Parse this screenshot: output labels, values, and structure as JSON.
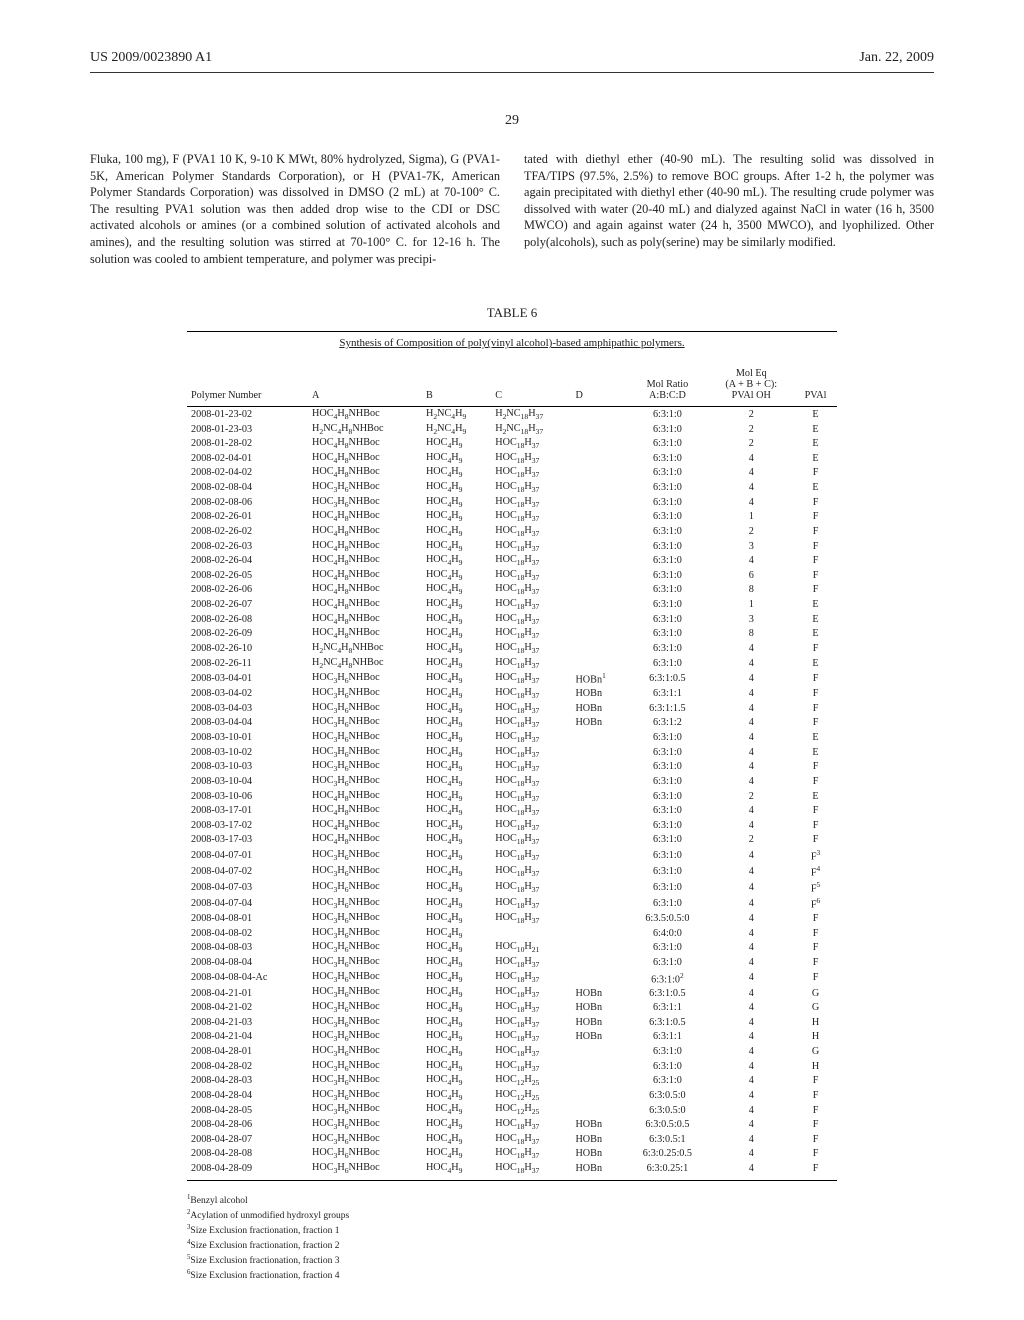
{
  "header": {
    "pub_no": "US 2009/0023890 A1",
    "date": "Jan. 22, 2009"
  },
  "page_number": "29",
  "left_paragraph": "Fluka, 100 mg), F (PVA1 10 K, 9-10 K MWt, 80% hydrolyzed, Sigma), G (PVA1-5K, American Polymer Standards Corporation), or H (PVA1-7K, American Polymer Standards Corporation) was dissolved in DMSO (2 mL) at 70-100° C. The resulting PVA1 solution was then added drop wise to the CDI or DSC activated alcohols or amines (or a combined solution of activated alcohols and amines), and the resulting solution was stirred at 70-100° C. for 12-16 h. The solution was cooled to ambient temperature, and polymer was precipi-",
  "right_paragraph": "tated with diethyl ether (40-90 mL). The resulting solid was dissolved in TFA/TIPS (97.5%, 2.5%) to remove BOC groups. After 1-2 h, the polymer was again precipitated with diethyl ether (40-90 mL). The resulting crude polymer was dissolved with water (20-40 mL) and dialyzed against NaCl in water (16 h, 3500 MWCO) and again against water (24 h, 3500 MWCO), and lyophilized. Other poly(alcohols), such as poly(serine) may be similarly modified.",
  "table": {
    "label": "TABLE 6",
    "caption": "Synthesis of Composition of poly(vinyl alcohol)-based amphipathic polymers.",
    "columns": [
      "Polymer Number",
      "A",
      "B",
      "C",
      "D",
      "Mol Ratio A:B:C:D",
      "Mol Eq (A + B + C): PVAl OH",
      "PVAl"
    ],
    "rows": [
      [
        "2008-01-23-02",
        "HOC<sub>4</sub>H<sub>8</sub>NHBoc",
        "H<sub>2</sub>NC<sub>4</sub>H<sub>9</sub>",
        "H<sub>2</sub>NC<sub>18</sub>H<sub>37</sub>",
        "",
        "6:3:1:0",
        "2",
        "E"
      ],
      [
        "2008-01-23-03",
        "H<sub>2</sub>NC<sub>4</sub>H<sub>8</sub>NHBoc",
        "H<sub>2</sub>NC<sub>4</sub>H<sub>9</sub>",
        "H<sub>2</sub>NC<sub>18</sub>H<sub>37</sub>",
        "",
        "6:3:1:0",
        "2",
        "E"
      ],
      [
        "2008-01-28-02",
        "HOC<sub>4</sub>H<sub>8</sub>NHBoc",
        "HOC<sub>4</sub>H<sub>9</sub>",
        "HOC<sub>18</sub>H<sub>37</sub>",
        "",
        "6:3:1:0",
        "2",
        "E"
      ],
      [
        "2008-02-04-01",
        "HOC<sub>4</sub>H<sub>8</sub>NHBoc",
        "HOC<sub>4</sub>H<sub>9</sub>",
        "HOC<sub>18</sub>H<sub>37</sub>",
        "",
        "6:3:1:0",
        "4",
        "E"
      ],
      [
        "2008-02-04-02",
        "HOC<sub>4</sub>H<sub>8</sub>NHBoc",
        "HOC<sub>4</sub>H<sub>9</sub>",
        "HOC<sub>18</sub>H<sub>37</sub>",
        "",
        "6:3:1:0",
        "4",
        "F"
      ],
      [
        "2008-02-08-04",
        "HOC<sub>3</sub>H<sub>6</sub>NHBoc",
        "HOC<sub>4</sub>H<sub>9</sub>",
        "HOC<sub>18</sub>H<sub>37</sub>",
        "",
        "6:3:1:0",
        "4",
        "E"
      ],
      [
        "2008-02-08-06",
        "HOC<sub>3</sub>H<sub>6</sub>NHBoc",
        "HOC<sub>4</sub>H<sub>9</sub>",
        "HOC<sub>18</sub>H<sub>37</sub>",
        "",
        "6:3:1:0",
        "4",
        "F"
      ],
      [
        "2008-02-26-01",
        "HOC<sub>4</sub>H<sub>8</sub>NHBoc",
        "HOC<sub>4</sub>H<sub>9</sub>",
        "HOC<sub>18</sub>H<sub>37</sub>",
        "",
        "6:3:1:0",
        "1",
        "F"
      ],
      [
        "2008-02-26-02",
        "HOC<sub>4</sub>H<sub>8</sub>NHBoc",
        "HOC<sub>4</sub>H<sub>9</sub>",
        "HOC<sub>18</sub>H<sub>37</sub>",
        "",
        "6:3:1:0",
        "2",
        "F"
      ],
      [
        "2008-02-26-03",
        "HOC<sub>4</sub>H<sub>8</sub>NHBoc",
        "HOC<sub>4</sub>H<sub>9</sub>",
        "HOC<sub>18</sub>H<sub>37</sub>",
        "",
        "6:3:1:0",
        "3",
        "F"
      ],
      [
        "2008-02-26-04",
        "HOC<sub>4</sub>H<sub>8</sub>NHBoc",
        "HOC<sub>4</sub>H<sub>9</sub>",
        "HOC<sub>18</sub>H<sub>37</sub>",
        "",
        "6:3:1:0",
        "4",
        "F"
      ],
      [
        "2008-02-26-05",
        "HOC<sub>4</sub>H<sub>8</sub>NHBoc",
        "HOC<sub>4</sub>H<sub>9</sub>",
        "HOC<sub>18</sub>H<sub>37</sub>",
        "",
        "6:3:1:0",
        "6",
        "F"
      ],
      [
        "2008-02-26-06",
        "HOC<sub>4</sub>H<sub>8</sub>NHBoc",
        "HOC<sub>4</sub>H<sub>9</sub>",
        "HOC<sub>18</sub>H<sub>37</sub>",
        "",
        "6:3:1:0",
        "8",
        "F"
      ],
      [
        "2008-02-26-07",
        "HOC<sub>4</sub>H<sub>8</sub>NHBoc",
        "HOC<sub>4</sub>H<sub>9</sub>",
        "HOC<sub>18</sub>H<sub>37</sub>",
        "",
        "6:3:1:0",
        "1",
        "E"
      ],
      [
        "2008-02-26-08",
        "HOC<sub>4</sub>H<sub>8</sub>NHBoc",
        "HOC<sub>4</sub>H<sub>9</sub>",
        "HOC<sub>18</sub>H<sub>37</sub>",
        "",
        "6:3:1:0",
        "3",
        "E"
      ],
      [
        "2008-02-26-09",
        "HOC<sub>4</sub>H<sub>8</sub>NHBoc",
        "HOC<sub>4</sub>H<sub>9</sub>",
        "HOC<sub>18</sub>H<sub>37</sub>",
        "",
        "6:3:1:0",
        "8",
        "E"
      ],
      [
        "2008-02-26-10",
        "H<sub>2</sub>NC<sub>4</sub>H<sub>8</sub>NHBoc",
        "HOC<sub>4</sub>H<sub>9</sub>",
        "HOC<sub>18</sub>H<sub>37</sub>",
        "",
        "6:3:1:0",
        "4",
        "F"
      ],
      [
        "2008-02-26-11",
        "H<sub>2</sub>NC<sub>4</sub>H<sub>8</sub>NHBoc",
        "HOC<sub>4</sub>H<sub>9</sub>",
        "HOC<sub>18</sub>H<sub>37</sub>",
        "",
        "6:3:1:0",
        "4",
        "E"
      ],
      [
        "2008-03-04-01",
        "HOC<sub>3</sub>H<sub>6</sub>NHBoc",
        "HOC<sub>4</sub>H<sub>9</sub>",
        "HOC<sub>18</sub>H<sub>37</sub>",
        "HOBn<sup>1</sup>",
        "6:3:1:0.5",
        "4",
        "F"
      ],
      [
        "2008-03-04-02",
        "HOC<sub>3</sub>H<sub>6</sub>NHBoc",
        "HOC<sub>4</sub>H<sub>9</sub>",
        "HOC<sub>18</sub>H<sub>37</sub>",
        "HOBn",
        "6:3:1:1",
        "4",
        "F"
      ],
      [
        "2008-03-04-03",
        "HOC<sub>3</sub>H<sub>6</sub>NHBoc",
        "HOC<sub>4</sub>H<sub>9</sub>",
        "HOC<sub>18</sub>H<sub>37</sub>",
        "HOBn",
        "6:3:1:1.5",
        "4",
        "F"
      ],
      [
        "2008-03-04-04",
        "HOC<sub>3</sub>H<sub>6</sub>NHBoc",
        "HOC<sub>4</sub>H<sub>9</sub>",
        "HOC<sub>18</sub>H<sub>37</sub>",
        "HOBn",
        "6:3:1:2",
        "4",
        "F"
      ],
      [
        "2008-03-10-01",
        "HOC<sub>3</sub>H<sub>6</sub>NHBoc",
        "HOC<sub>4</sub>H<sub>9</sub>",
        "HOC<sub>18</sub>H<sub>37</sub>",
        "",
        "6:3:1:0",
        "4",
        "E"
      ],
      [
        "2008-03-10-02",
        "HOC<sub>3</sub>H<sub>6</sub>NHBoc",
        "HOC<sub>4</sub>H<sub>9</sub>",
        "HOC<sub>18</sub>H<sub>37</sub>",
        "",
        "6:3:1:0",
        "4",
        "E"
      ],
      [
        "2008-03-10-03",
        "HOC<sub>3</sub>H<sub>6</sub>NHBoc",
        "HOC<sub>4</sub>H<sub>9</sub>",
        "HOC<sub>18</sub>H<sub>37</sub>",
        "",
        "6:3:1:0",
        "4",
        "F"
      ],
      [
        "2008-03-10-04",
        "HOC<sub>3</sub>H<sub>6</sub>NHBoc",
        "HOC<sub>4</sub>H<sub>9</sub>",
        "HOC<sub>18</sub>H<sub>37</sub>",
        "",
        "6:3:1:0",
        "4",
        "F"
      ],
      [
        "2008-03-10-06",
        "HOC<sub>4</sub>H<sub>8</sub>NHBoc",
        "HOC<sub>4</sub>H<sub>9</sub>",
        "HOC<sub>18</sub>H<sub>37</sub>",
        "",
        "6:3:1:0",
        "2",
        "E"
      ],
      [
        "2008-03-17-01",
        "HOC<sub>4</sub>H<sub>8</sub>NHBoc",
        "HOC<sub>4</sub>H<sub>9</sub>",
        "HOC<sub>18</sub>H<sub>37</sub>",
        "",
        "6:3:1:0",
        "4",
        "F"
      ],
      [
        "2008-03-17-02",
        "HOC<sub>4</sub>H<sub>8</sub>NHBoc",
        "HOC<sub>4</sub>H<sub>9</sub>",
        "HOC<sub>18</sub>H<sub>37</sub>",
        "",
        "6:3:1:0",
        "4",
        "F"
      ],
      [
        "2008-03-17-03",
        "HOC<sub>4</sub>H<sub>8</sub>NHBoc",
        "HOC<sub>4</sub>H<sub>9</sub>",
        "HOC<sub>18</sub>H<sub>37</sub>",
        "",
        "6:3:1:0",
        "2",
        "F"
      ],
      [
        "2008-04-07-01",
        "HOC<sub>3</sub>H<sub>6</sub>NHBoc",
        "HOC<sub>4</sub>H<sub>9</sub>",
        "HOC<sub>18</sub>H<sub>37</sub>",
        "",
        "6:3:1:0",
        "4",
        "F<sup>3</sup>"
      ],
      [
        "2008-04-07-02",
        "HOC<sub>3</sub>H<sub>6</sub>NHBoc",
        "HOC<sub>4</sub>H<sub>9</sub>",
        "HOC<sub>18</sub>H<sub>37</sub>",
        "",
        "6:3:1:0",
        "4",
        "F<sup>4</sup>"
      ],
      [
        "2008-04-07-03",
        "HOC<sub>3</sub>H<sub>6</sub>NHBoc",
        "HOC<sub>4</sub>H<sub>9</sub>",
        "HOC<sub>18</sub>H<sub>37</sub>",
        "",
        "6:3:1:0",
        "4",
        "F<sup>5</sup>"
      ],
      [
        "2008-04-07-04",
        "HOC<sub>3</sub>H<sub>6</sub>NHBoc",
        "HOC<sub>4</sub>H<sub>9</sub>",
        "HOC<sub>18</sub>H<sub>37</sub>",
        "",
        "6:3:1:0",
        "4",
        "F<sup>6</sup>"
      ],
      [
        "2008-04-08-01",
        "HOC<sub>3</sub>H<sub>6</sub>NHBoc",
        "HOC<sub>4</sub>H<sub>9</sub>",
        "HOC<sub>18</sub>H<sub>37</sub>",
        "",
        "6:3.5:0.5:0",
        "4",
        "F"
      ],
      [
        "2008-04-08-02",
        "HOC<sub>3</sub>H<sub>6</sub>NHBoc",
        "HOC<sub>4</sub>H<sub>9</sub>",
        "",
        "",
        "6:4:0:0",
        "4",
        "F"
      ],
      [
        "2008-04-08-03",
        "HOC<sub>3</sub>H<sub>6</sub>NHBoc",
        "HOC<sub>4</sub>H<sub>9</sub>",
        "HOC<sub>10</sub>H<sub>21</sub>",
        "",
        "6:3:1:0",
        "4",
        "F"
      ],
      [
        "2008-04-08-04",
        "HOC<sub>3</sub>H<sub>6</sub>NHBoc",
        "HOC<sub>4</sub>H<sub>9</sub>",
        "HOC<sub>18</sub>H<sub>37</sub>",
        "",
        "6:3:1:0",
        "4",
        "F"
      ],
      [
        "2008-04-08-04-Ac",
        "HOC<sub>3</sub>H<sub>6</sub>NHBoc",
        "HOC<sub>4</sub>H<sub>9</sub>",
        "HOC<sub>18</sub>H<sub>37</sub>",
        "",
        "6:3:1:0<sup>2</sup>",
        "4",
        "F"
      ],
      [
        "2008-04-21-01",
        "HOC<sub>3</sub>H<sub>6</sub>NHBoc",
        "HOC<sub>4</sub>H<sub>9</sub>",
        "HOC<sub>18</sub>H<sub>37</sub>",
        "HOBn",
        "6:3:1:0.5",
        "4",
        "G"
      ],
      [
        "2008-04-21-02",
        "HOC<sub>3</sub>H<sub>6</sub>NHBoc",
        "HOC<sub>4</sub>H<sub>9</sub>",
        "HOC<sub>18</sub>H<sub>37</sub>",
        "HOBn",
        "6:3:1:1",
        "4",
        "G"
      ],
      [
        "2008-04-21-03",
        "HOC<sub>3</sub>H<sub>6</sub>NHBoc",
        "HOC<sub>4</sub>H<sub>9</sub>",
        "HOC<sub>18</sub>H<sub>37</sub>",
        "HOBn",
        "6:3:1:0.5",
        "4",
        "H"
      ],
      [
        "2008-04-21-04",
        "HOC<sub>3</sub>H<sub>6</sub>NHBoc",
        "HOC<sub>4</sub>H<sub>9</sub>",
        "HOC<sub>18</sub>H<sub>37</sub>",
        "HOBn",
        "6:3:1:1",
        "4",
        "H"
      ],
      [
        "2008-04-28-01",
        "HOC<sub>3</sub>H<sub>6</sub>NHBoc",
        "HOC<sub>4</sub>H<sub>9</sub>",
        "HOC<sub>18</sub>H<sub>37</sub>",
        "",
        "6:3:1:0",
        "4",
        "G"
      ],
      [
        "2008-04-28-02",
        "HOC<sub>3</sub>H<sub>6</sub>NHBoc",
        "HOC<sub>4</sub>H<sub>9</sub>",
        "HOC<sub>18</sub>H<sub>37</sub>",
        "",
        "6:3:1:0",
        "4",
        "H"
      ],
      [
        "2008-04-28-03",
        "HOC<sub>3</sub>H<sub>6</sub>NHBoc",
        "HOC<sub>4</sub>H<sub>9</sub>",
        "HOC<sub>12</sub>H<sub>25</sub>",
        "",
        "6:3:1:0",
        "4",
        "F"
      ],
      [
        "2008-04-28-04",
        "HOC<sub>3</sub>H<sub>6</sub>NHBoc",
        "HOC<sub>4</sub>H<sub>9</sub>",
        "HOC<sub>12</sub>H<sub>25</sub>",
        "",
        "6:3:0.5:0",
        "4",
        "F"
      ],
      [
        "2008-04-28-05",
        "HOC<sub>3</sub>H<sub>6</sub>NHBoc",
        "HOC<sub>4</sub>H<sub>9</sub>",
        "HOC<sub>12</sub>H<sub>25</sub>",
        "",
        "6:3:0.5:0",
        "4",
        "F"
      ],
      [
        "2008-04-28-06",
        "HOC<sub>3</sub>H<sub>6</sub>NHBoc",
        "HOC<sub>4</sub>H<sub>9</sub>",
        "HOC<sub>18</sub>H<sub>37</sub>",
        "HOBn",
        "6:3:0.5:0.5",
        "4",
        "F"
      ],
      [
        "2008-04-28-07",
        "HOC<sub>3</sub>H<sub>6</sub>NHBoc",
        "HOC<sub>4</sub>H<sub>9</sub>",
        "HOC<sub>18</sub>H<sub>37</sub>",
        "HOBn",
        "6:3:0.5:1",
        "4",
        "F"
      ],
      [
        "2008-04-28-08",
        "HOC<sub>3</sub>H<sub>6</sub>NHBoc",
        "HOC<sub>4</sub>H<sub>9</sub>",
        "HOC<sub>18</sub>H<sub>37</sub>",
        "HOBn",
        "6:3:0.25:0.5",
        "4",
        "F"
      ],
      [
        "2008-04-28-09",
        "HOC<sub>3</sub>H<sub>6</sub>NHBoc",
        "HOC<sub>4</sub>H<sub>9</sub>",
        "HOC<sub>18</sub>H<sub>37</sub>",
        "HOBn",
        "6:3:0.25:1",
        "4",
        "F"
      ]
    ]
  },
  "footnotes": [
    "<sup>1</sup>Benzyl alcohol",
    "<sup>2</sup>Acylation of unmodified hydroxyl groups",
    "<sup>3</sup>Size Exclusion fractionation, fraction 1",
    "<sup>4</sup>Size Exclusion fractionation, fraction 2",
    "<sup>5</sup>Size Exclusion fractionation, fraction 3",
    "<sup>6</sup>Size Exclusion fractionation, fraction 4"
  ]
}
